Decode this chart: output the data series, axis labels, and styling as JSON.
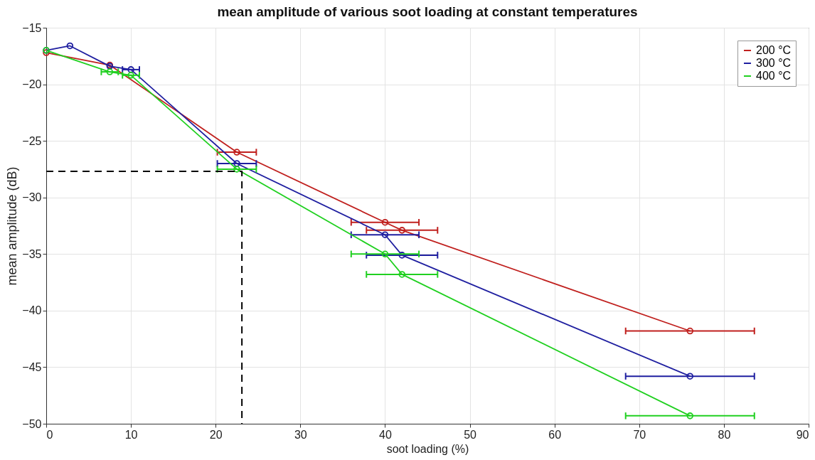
{
  "chart_data": {
    "type": "line",
    "title": "mean amplitude of various soot loading at constant temperatures",
    "xlabel": "soot loading (%)",
    "ylabel": "mean amplitude (dB)",
    "series": [
      {
        "name": "200 °C",
        "color": "#c0201e",
        "x": [
          0,
          7.5,
          22.5,
          40,
          42,
          76
        ],
        "values": [
          -17.2,
          -18.3,
          -26.0,
          -32.2,
          -32.9,
          -41.8
        ],
        "xerrors": [
          null,
          null,
          2.3,
          4,
          4.2,
          7.6
        ]
      },
      {
        "name": "300 °C",
        "color": "#1f1fa0",
        "x": [
          0,
          2.8,
          7.5,
          10,
          22.5,
          40,
          42,
          76
        ],
        "values": [
          -17.0,
          -16.6,
          -18.4,
          -18.7,
          -27.0,
          -33.3,
          -35.1,
          -45.8
        ],
        "xerrors": [
          null,
          null,
          null,
          1,
          2.3,
          4,
          4.2,
          7.6
        ]
      },
      {
        "name": "400 °C",
        "color": "#20d020",
        "x": [
          0,
          7.5,
          10,
          22.5,
          40,
          42,
          76
        ],
        "values": [
          -17.0,
          -18.9,
          -19.2,
          -27.5,
          -35.0,
          -36.8,
          -49.3
        ],
        "xerrors": [
          null,
          1,
          1,
          2.3,
          4,
          4.2,
          7.6
        ]
      },
      {
        "type": "line",
        "color": "#000000",
        "line_style": "dashed",
        "marker": "none",
        "x": [
          0,
          23.1,
          23.1
        ],
        "values": [
          -27.7,
          -27.7,
          -50
        ]
      }
    ],
    "xlim": [
      0,
      90
    ],
    "xticks": [
      0,
      10,
      20,
      30,
      40,
      50,
      60,
      70,
      80,
      90
    ],
    "ylim": [
      -50,
      -15
    ],
    "yticks": [
      -50,
      -45,
      -40,
      -35,
      -30,
      -25,
      -20,
      -15
    ],
    "grid": true,
    "legend": "top right",
    "marker": "circle",
    "line_style": "solid"
  }
}
